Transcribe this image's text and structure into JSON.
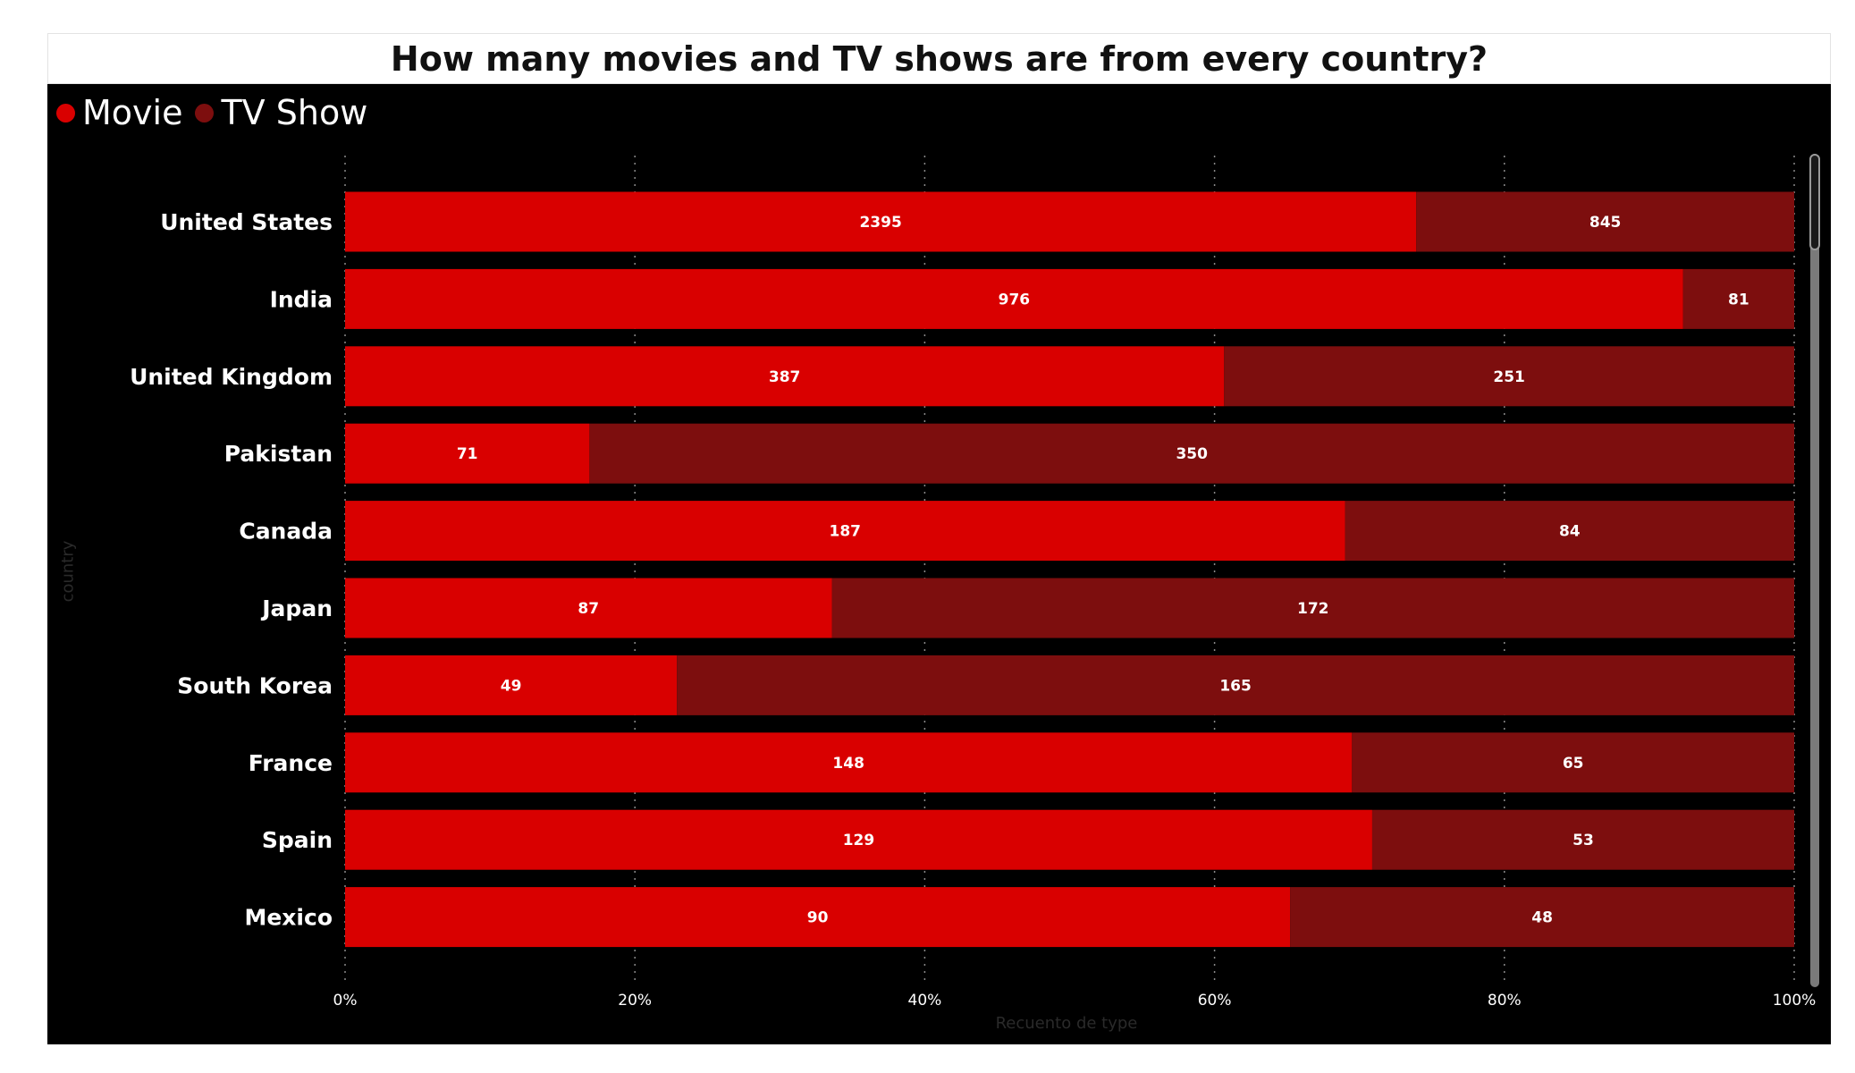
{
  "title": "How many movies and TV shows are from every country?",
  "legend": [
    {
      "label": "Movie",
      "color": "#d90000"
    },
    {
      "label": "TV Show",
      "color": "#7d0e0e"
    }
  ],
  "chart_data": {
    "type": "bar",
    "orientation": "horizontal",
    "stacking": "percent",
    "title": "How many movies and TV shows are from every country?",
    "xlabel": "Recuento de type",
    "ylabel": "country",
    "xlim": [
      0,
      100
    ],
    "x_ticks": [
      "0%",
      "20%",
      "40%",
      "60%",
      "80%",
      "100%"
    ],
    "grid": "vertical dotted",
    "legend_position": "top-left",
    "categories": [
      "United States",
      "India",
      "United Kingdom",
      "Pakistan",
      "Canada",
      "Japan",
      "South Korea",
      "France",
      "Spain",
      "Mexico"
    ],
    "series": [
      {
        "name": "Movie",
        "color": "#d90000",
        "values": [
          2395,
          976,
          387,
          71,
          187,
          87,
          49,
          148,
          129,
          90
        ]
      },
      {
        "name": "TV Show",
        "color": "#7d0e0e",
        "values": [
          845,
          81,
          251,
          350,
          84,
          172,
          165,
          65,
          53,
          48
        ]
      }
    ]
  }
}
